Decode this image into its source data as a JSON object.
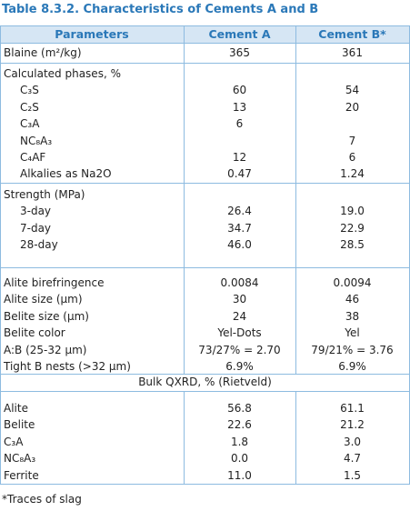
{
  "title": "Table 8.3.2. Characteristics of Cements A and B",
  "table": {
    "header": [
      "Parameters",
      "Cement A",
      "Cement B*"
    ],
    "blocks": [
      {
        "rows": [
          [
            "Blaine (m²/kg)",
            "365",
            "361"
          ]
        ]
      },
      {
        "label": "Calculated phases, %",
        "rows": [
          [
            "C₃S",
            "60",
            "54"
          ],
          [
            "C₂S",
            "13",
            "20"
          ],
          [
            "C₃A",
            "6",
            null
          ],
          [
            "NC₈A₃",
            null,
            "7"
          ],
          [
            "C₄AF",
            "12",
            "6"
          ],
          [
            "Alkalies as Na2O",
            "0.47",
            "1.24"
          ]
        ]
      },
      {
        "label": "Strength (MPa)",
        "rows": [
          [
            "3-day",
            "26.4",
            "19.0"
          ],
          [
            "7-day",
            "34.7",
            "22.9"
          ],
          [
            "28-day",
            "46.0",
            "28.5"
          ]
        ]
      },
      {
        "rows": [
          [
            "Alite birefringence",
            "0.0084",
            "0.0094"
          ],
          [
            "Alite size (µm)",
            "30",
            "46"
          ],
          [
            "Belite size (µm)",
            "24",
            "38"
          ],
          [
            "Belite color",
            "Yel-Dots",
            "Yel"
          ],
          [
            "A:B (25-32 µm)",
            "73/27% = 2.70",
            "79/21% = 3.76"
          ],
          [
            "Tight B nests (>32 µm)",
            "6.9%",
            "6.9%"
          ]
        ]
      },
      {
        "span": "Bulk QXRD, % (Rietveld)"
      },
      {
        "rows": [
          [
            "Alite",
            "56.8",
            "61.1"
          ],
          [
            "Belite",
            "22.6",
            "21.2"
          ],
          [
            "C₃A",
            "1.8",
            "3.0"
          ],
          [
            "NC₈A₃",
            "0.0",
            "4.7"
          ],
          [
            "Ferrite",
            "11.0",
            "1.5"
          ]
        ]
      }
    ]
  },
  "footnote": "*Traces of slag"
}
